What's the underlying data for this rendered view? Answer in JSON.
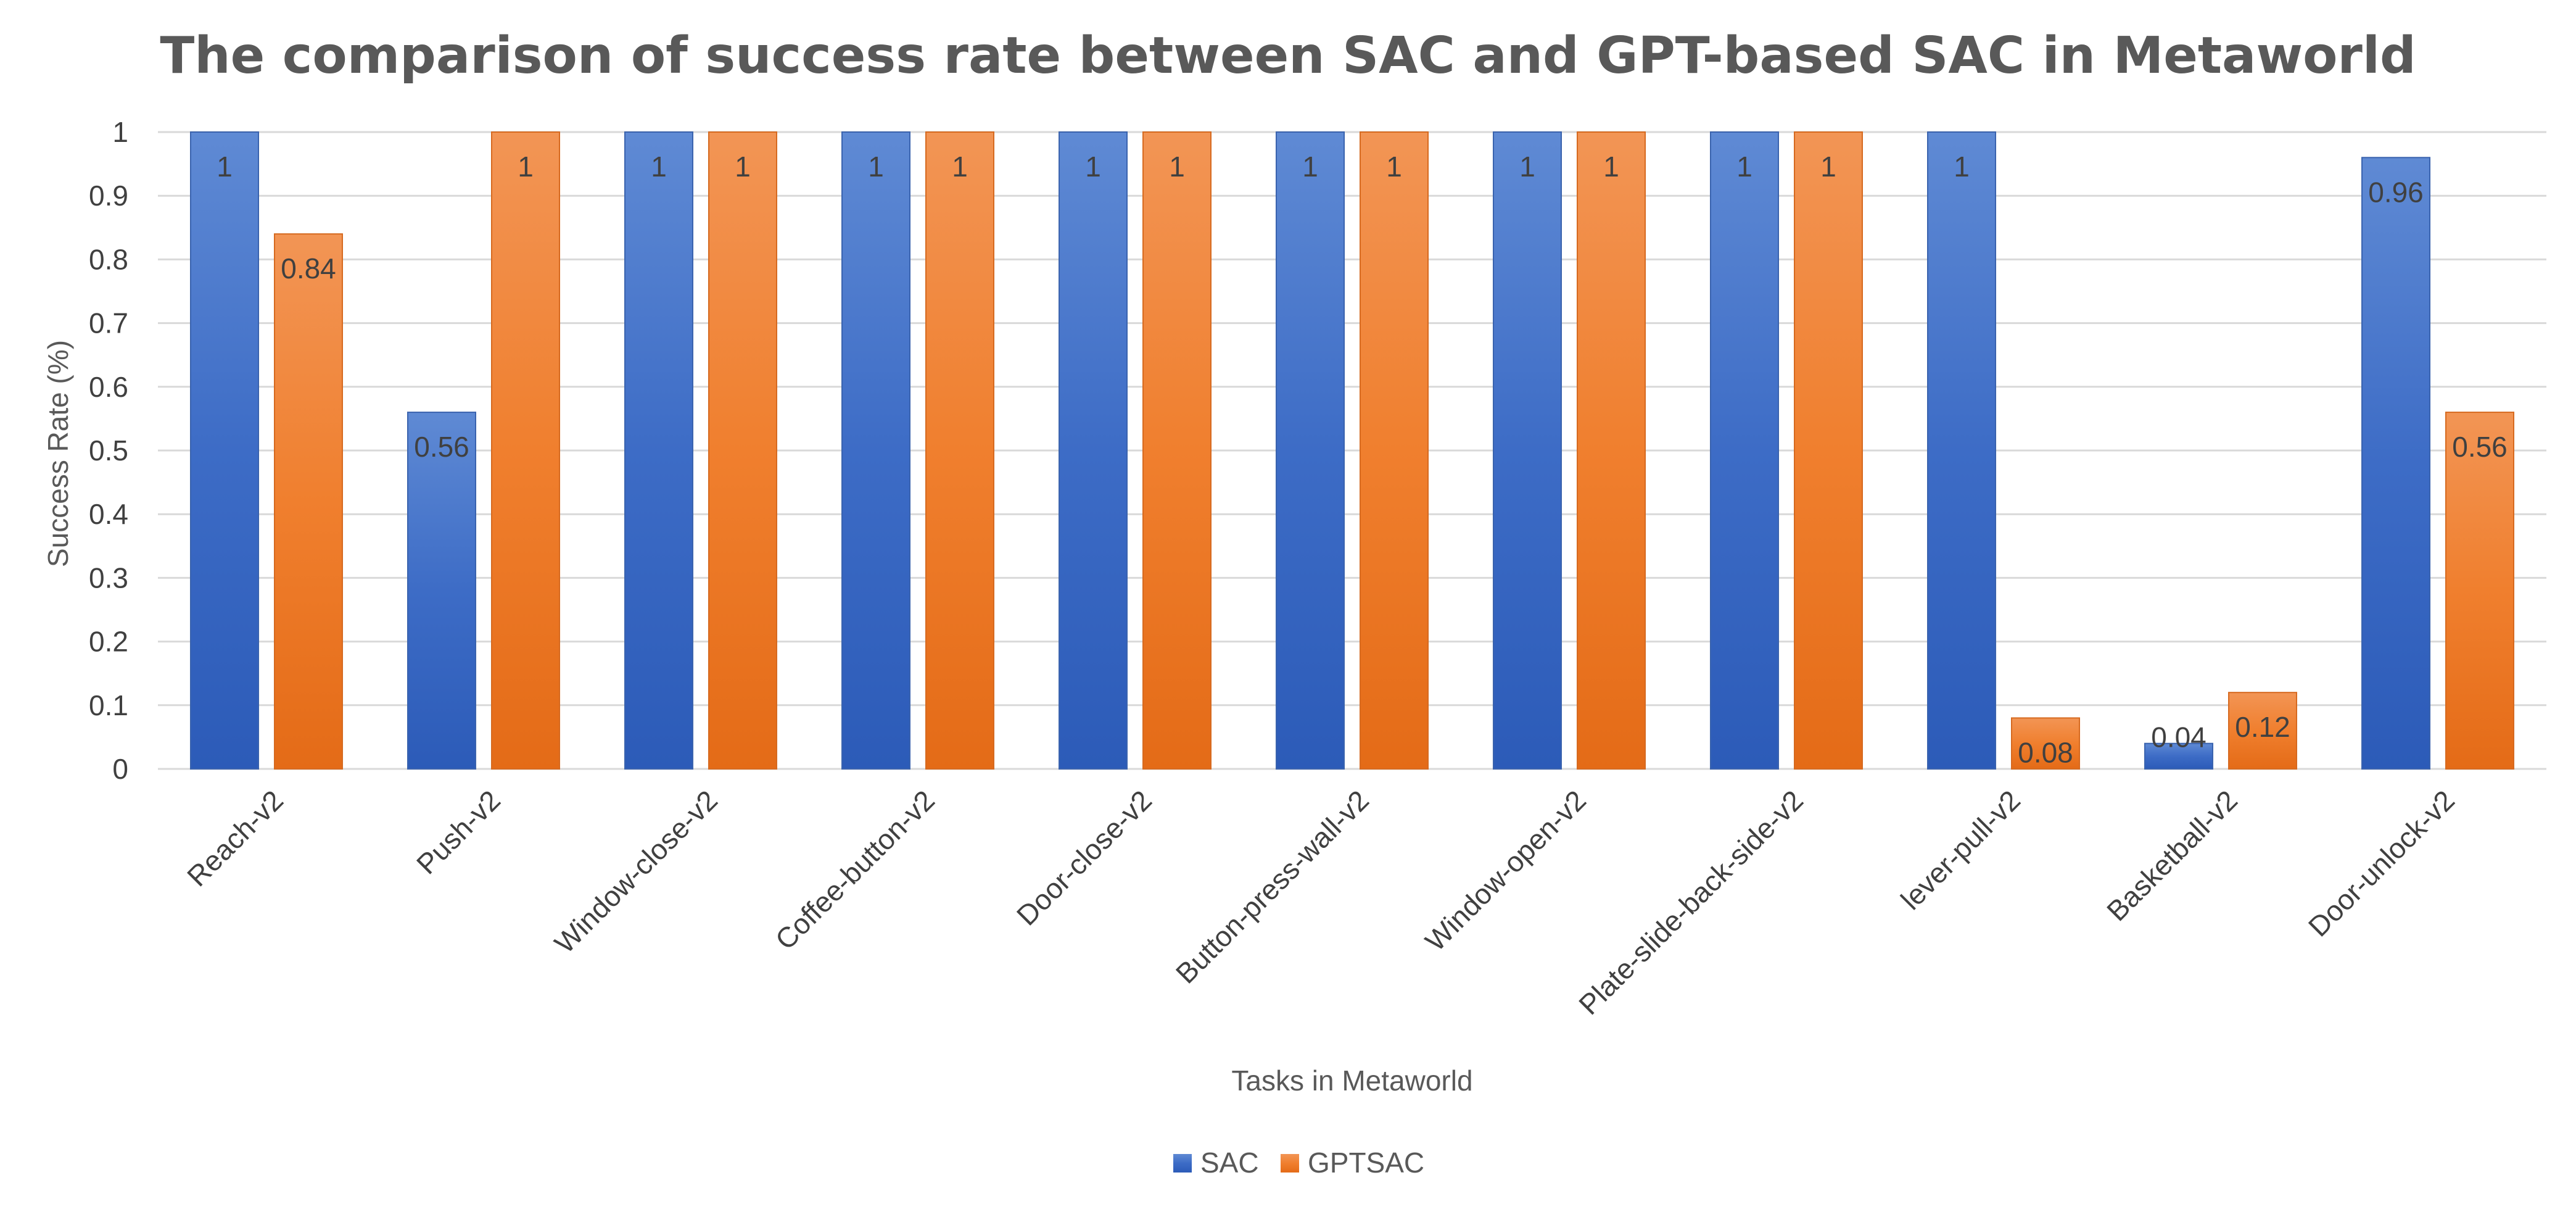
{
  "chart_data": {
    "type": "bar",
    "title": "The comparison of success rate between SAC and GPT-based SAC in Metaworld",
    "xlabel": "Tasks in Metaworld",
    "ylabel": "Success Rate (%)",
    "ylim": [
      0,
      1
    ],
    "yticks": [
      "0",
      "0.1",
      "0.2",
      "0.3",
      "0.4",
      "0.5",
      "0.6",
      "0.7",
      "0.8",
      "0.9",
      "1"
    ],
    "grid": true,
    "legend_position": "bottom",
    "categories": [
      "Reach-v2",
      "Push-v2",
      "Window-close-v2",
      "Coffee-button-v2",
      "Door-close-v2",
      "Button-press-wall-v2",
      "Window-open-v2",
      "Plate-slide-back-side-v2",
      "lever-pull-v2",
      "Basketball-v2",
      "Door-unlock-v2"
    ],
    "series": [
      {
        "name": "SAC",
        "color": "#4472C4",
        "values": [
          1,
          0.56,
          1,
          1,
          1,
          1,
          1,
          1,
          1,
          0.04,
          0.96
        ],
        "labels": [
          "1",
          "0.56",
          "1",
          "1",
          "1",
          "1",
          "1",
          "1",
          "1",
          "0.04",
          "0.96"
        ]
      },
      {
        "name": "GPTSAC",
        "color": "#ED7D31",
        "values": [
          0.84,
          1,
          1,
          1,
          1,
          1,
          1,
          1,
          0.08,
          0.12,
          0.56
        ],
        "labels": [
          "0.84",
          "1",
          "1",
          "1",
          "1",
          "1",
          "1",
          "1",
          "0.08",
          "0.12",
          "0.56"
        ]
      }
    ]
  }
}
